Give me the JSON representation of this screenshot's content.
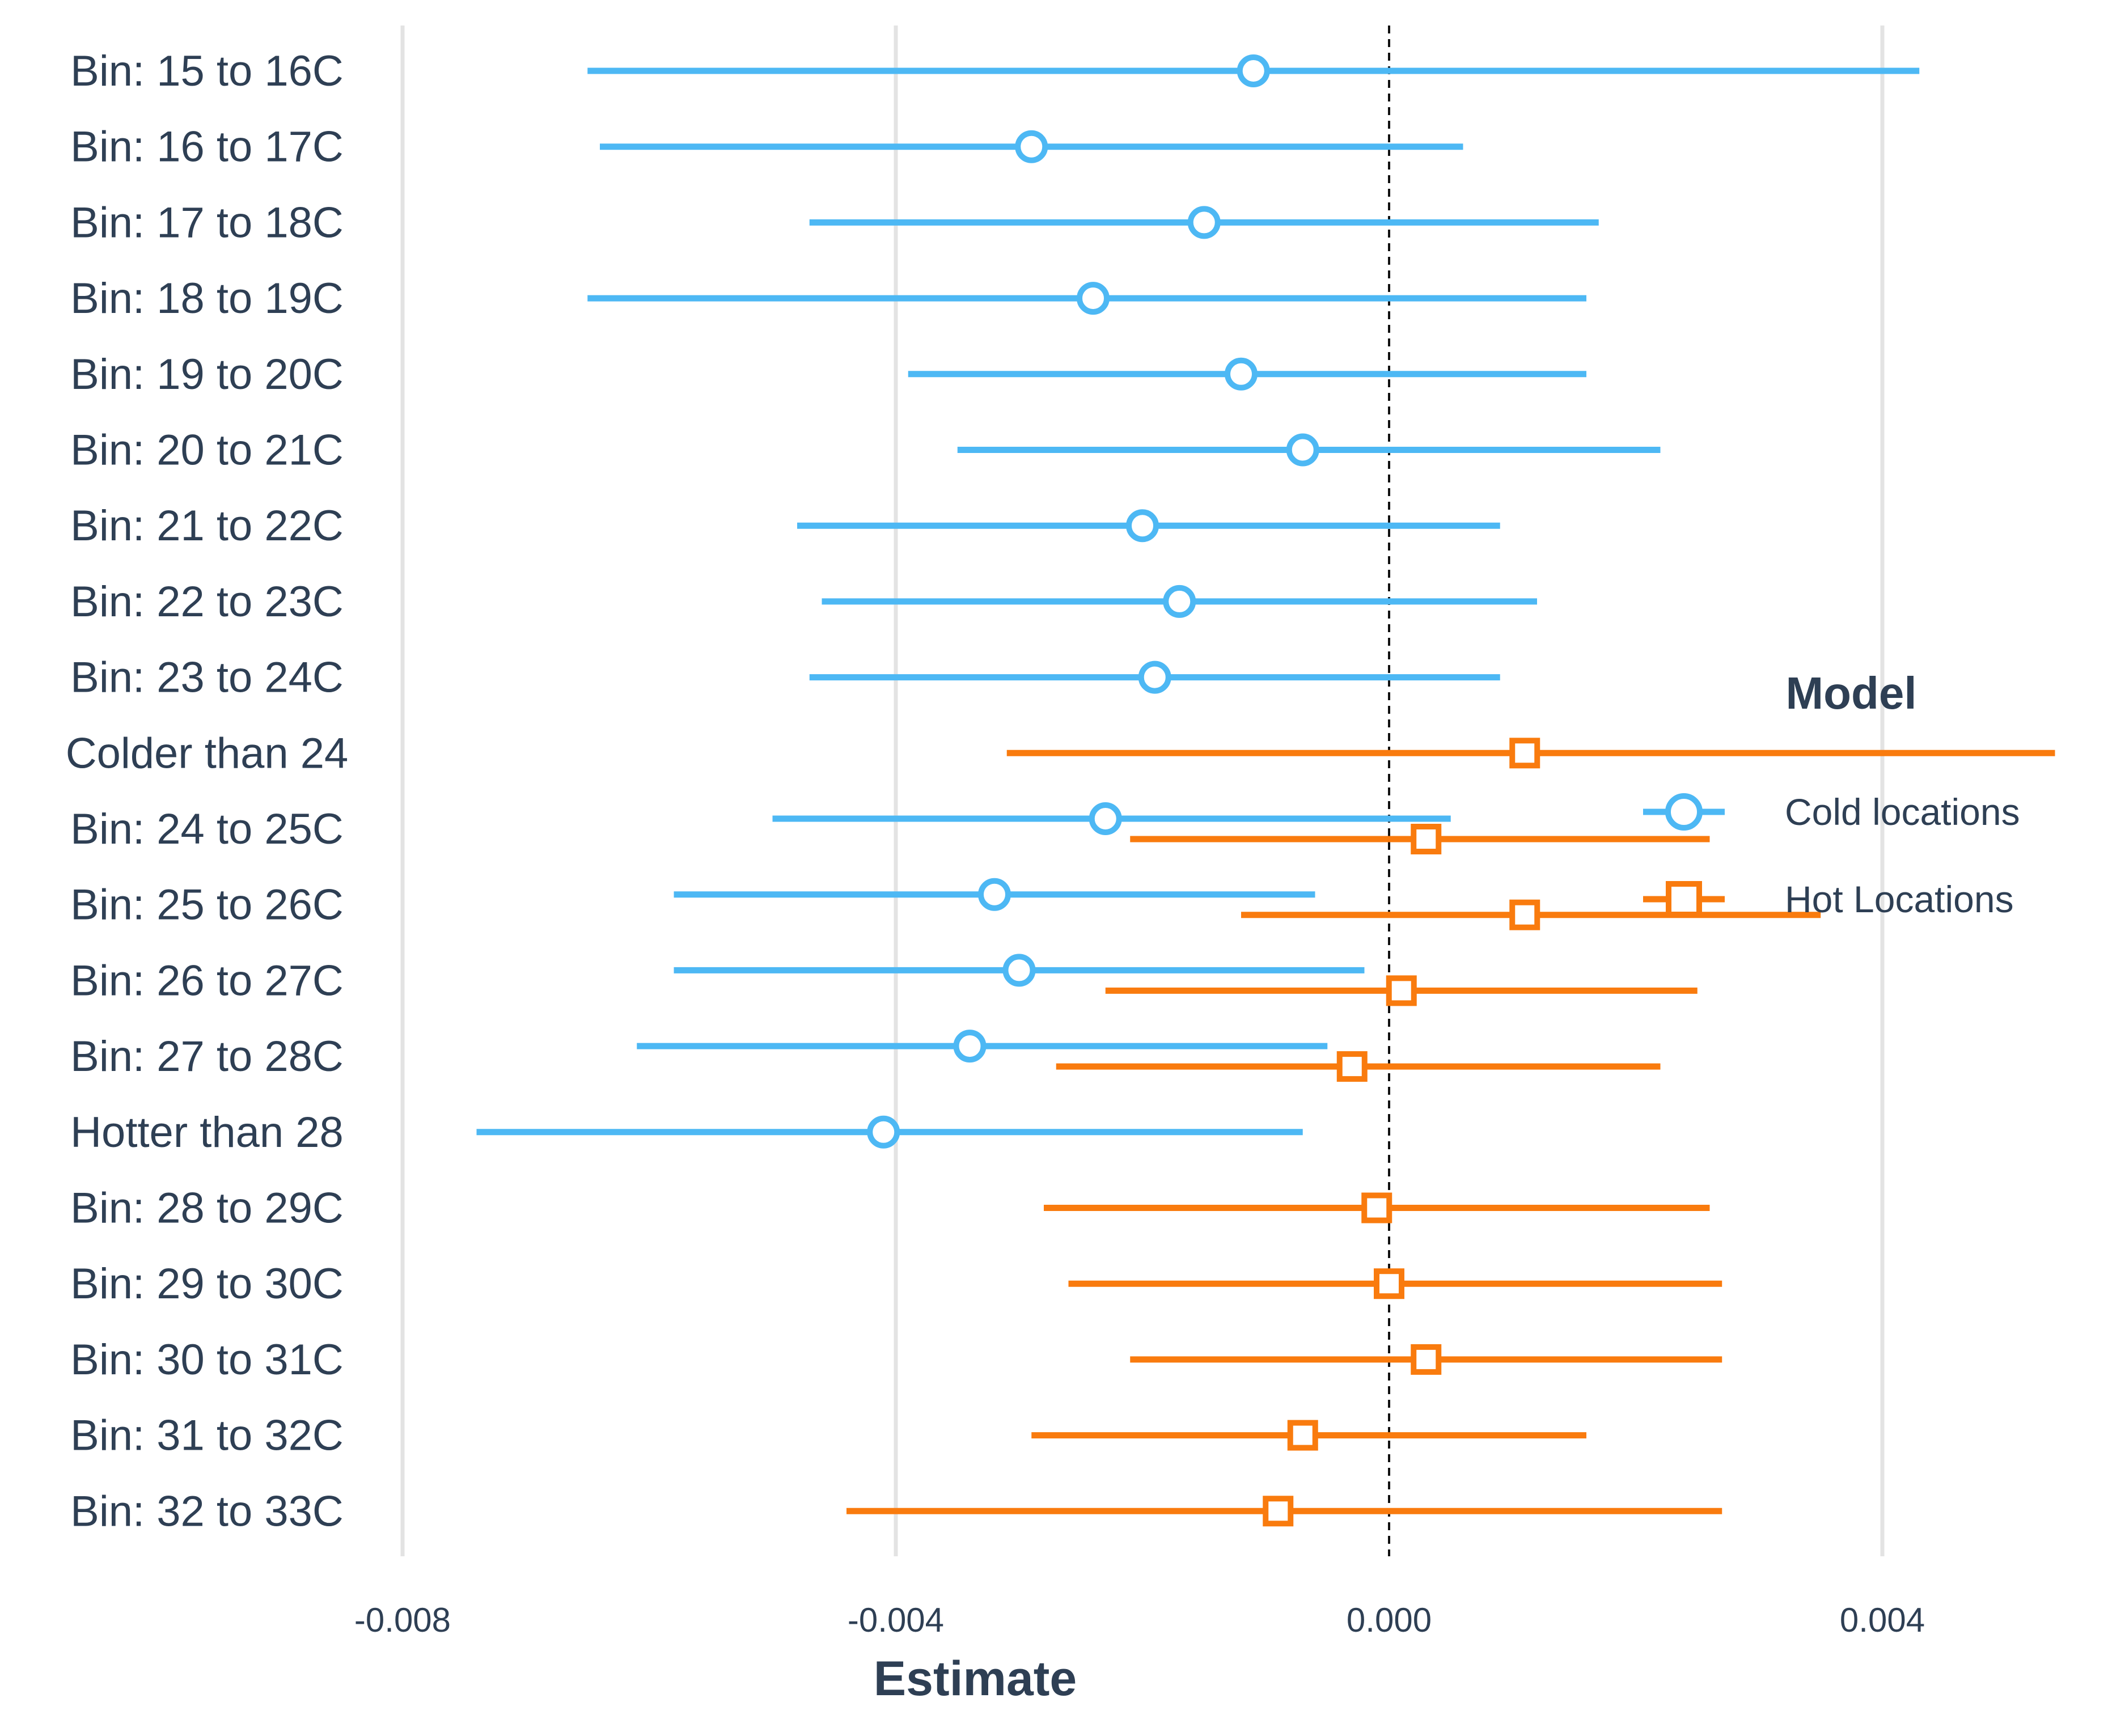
{
  "chart_data": {
    "type": "scatter",
    "subtype": "coefficient-plot-with-confidence-intervals",
    "title": "",
    "xlabel": "Estimate",
    "ylabel": "",
    "xlim": [
      -0.0081,
      0.009
    ],
    "xticks": [
      -0.008,
      -0.004,
      0.0,
      0.004
    ],
    "xtick_labels": [
      "-0.008",
      "-0.004",
      "0.000",
      "0.004"
    ],
    "reference_line": 0.0,
    "vertical_grid": true,
    "legend_placement": "right",
    "legend_title": "Model",
    "categories": [
      "Bin: 15 to 16C",
      "Bin: 16 to 17C",
      "Bin: 17 to 18C",
      "Bin: 18 to 19C",
      "Bin: 19 to 20C",
      "Bin: 20 to 21C",
      "Bin: 21 to 22C",
      "Bin: 22 to 23C",
      "Bin: 23 to 24C",
      "Colder than 24",
      "Bin: 24 to 25C",
      "Bin: 25 to 26C",
      "Bin: 26 to 27C",
      "Bin: 27 to 28C",
      "Hotter than 28",
      "Bin: 28 to 29C",
      "Bin: 29 to 30C",
      "Bin: 30 to 31C",
      "Bin: 31 to 32C",
      "Bin: 32 to 33C"
    ],
    "series": [
      {
        "name": "Cold locations",
        "color": "#4db8f4",
        "marker": "circle",
        "points": [
          {
            "category": "Bin: 15 to 16C",
            "estimate": -0.0011,
            "low": -0.0065,
            "high": 0.0043
          },
          {
            "category": "Bin: 16 to 17C",
            "estimate": -0.0029,
            "low": -0.0064,
            "high": 0.0006
          },
          {
            "category": "Bin: 17 to 18C",
            "estimate": -0.0015,
            "low": -0.0047,
            "high": 0.0017
          },
          {
            "category": "Bin: 18 to 19C",
            "estimate": -0.0024,
            "low": -0.0065,
            "high": 0.0016
          },
          {
            "category": "Bin: 19 to 20C",
            "estimate": -0.0012,
            "low": -0.0039,
            "high": 0.0016
          },
          {
            "category": "Bin: 20 to 21C",
            "estimate": -0.0007,
            "low": -0.0035,
            "high": 0.0022
          },
          {
            "category": "Bin: 21 to 22C",
            "estimate": -0.002,
            "low": -0.0048,
            "high": 0.0009
          },
          {
            "category": "Bin: 22 to 23C",
            "estimate": -0.0017,
            "low": -0.0046,
            "high": 0.0012
          },
          {
            "category": "Bin: 23 to 24C",
            "estimate": -0.0019,
            "low": -0.0047,
            "high": 0.0009
          },
          {
            "category": "Bin: 24 to 25C",
            "estimate": -0.0023,
            "low": -0.005,
            "high": 0.0005
          },
          {
            "category": "Bin: 25 to 26C",
            "estimate": -0.0032,
            "low": -0.0058,
            "high": -0.0006
          },
          {
            "category": "Bin: 26 to 27C",
            "estimate": -0.003,
            "low": -0.0058,
            "high": -0.0002
          },
          {
            "category": "Bin: 27 to 28C",
            "estimate": -0.0034,
            "low": -0.0061,
            "high": -0.0005
          },
          {
            "category": "Hotter than 28",
            "estimate": -0.0041,
            "low": -0.0074,
            "high": -0.0007
          }
        ]
      },
      {
        "name": "Hot Locations",
        "color": "#f97b0e",
        "marker": "square",
        "points": [
          {
            "category": "Colder than 24",
            "estimate": 0.0011,
            "low": -0.0031,
            "high": 0.0054
          },
          {
            "category": "Bin: 24 to 25C",
            "estimate": 0.0003,
            "low": -0.0021,
            "high": 0.0026
          },
          {
            "category": "Bin: 25 to 26C",
            "estimate": 0.0011,
            "low": -0.0012,
            "high": 0.0035
          },
          {
            "category": "Bin: 26 to 27C",
            "estimate": 0.0001,
            "low": -0.0023,
            "high": 0.0025
          },
          {
            "category": "Bin: 27 to 28C",
            "estimate": -0.0003,
            "low": -0.0027,
            "high": 0.0022
          },
          {
            "category": "Bin: 28 to 29C",
            "estimate": -0.0001,
            "low": -0.0028,
            "high": 0.0026
          },
          {
            "category": "Bin: 29 to 30C",
            "estimate": 0.0,
            "low": -0.0026,
            "high": 0.0027
          },
          {
            "category": "Bin: 30 to 31C",
            "estimate": 0.0003,
            "low": -0.0021,
            "high": 0.0027
          },
          {
            "category": "Bin: 31 to 32C",
            "estimate": -0.0007,
            "low": -0.0029,
            "high": 0.0016
          },
          {
            "category": "Bin: 32 to 33C",
            "estimate": -0.0009,
            "low": -0.0044,
            "high": 0.0027
          }
        ]
      }
    ]
  }
}
